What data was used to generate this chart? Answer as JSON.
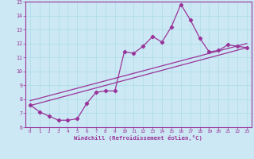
{
  "xlabel": "Windchill (Refroidissement éolien,°C)",
  "ylabel": "",
  "xlim": [
    -0.5,
    23.5
  ],
  "ylim": [
    6,
    15
  ],
  "xticks": [
    0,
    1,
    2,
    3,
    4,
    5,
    6,
    7,
    8,
    9,
    10,
    11,
    12,
    13,
    14,
    15,
    16,
    17,
    18,
    19,
    20,
    21,
    22,
    23
  ],
  "yticks": [
    6,
    7,
    8,
    9,
    10,
    11,
    12,
    13,
    14,
    15
  ],
  "bg_color": "#cce8f4",
  "line_color": "#993399",
  "data_x": [
    0,
    1,
    2,
    3,
    4,
    5,
    6,
    7,
    8,
    9,
    10,
    11,
    12,
    13,
    14,
    15,
    16,
    17,
    18,
    19,
    20,
    21,
    22,
    23
  ],
  "data_y": [
    7.6,
    7.1,
    6.8,
    6.5,
    6.5,
    6.6,
    7.7,
    8.5,
    8.6,
    8.6,
    11.4,
    11.3,
    11.8,
    12.5,
    12.1,
    13.2,
    14.8,
    13.7,
    12.4,
    11.4,
    11.5,
    11.9,
    11.8,
    11.7
  ],
  "reg1_x0": 0,
  "reg1_y0": 7.55,
  "reg1_x1": 23,
  "reg1_y1": 11.7,
  "reg2_x0": 0,
  "reg2_y0": 7.9,
  "reg2_x1": 23,
  "reg2_y1": 12.0,
  "grid_color": "#aadce8"
}
